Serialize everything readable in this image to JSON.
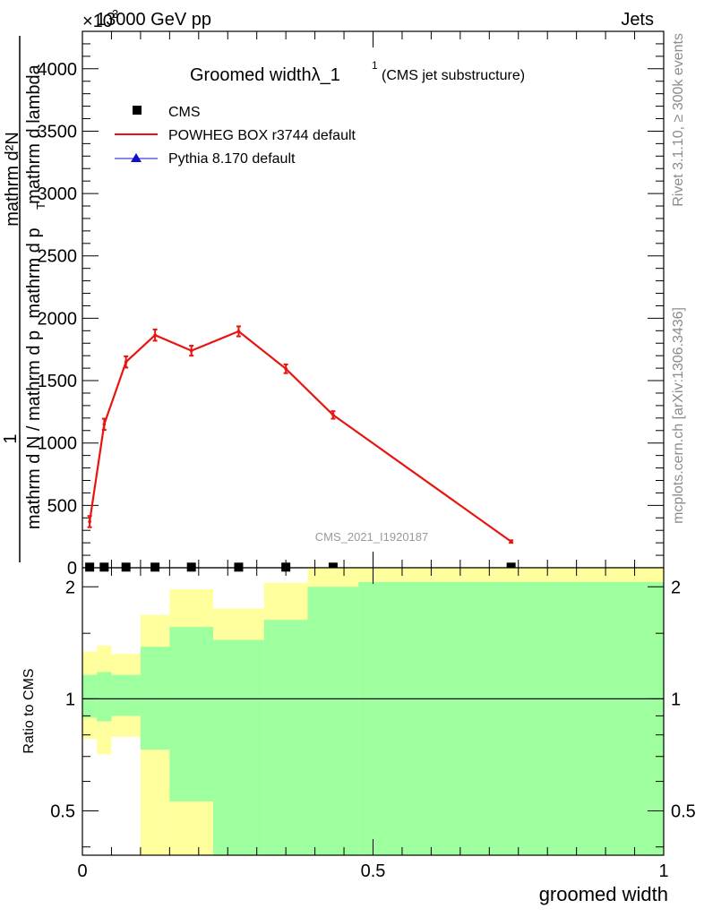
{
  "header": {
    "energy_label": "13000 GeV pp",
    "process_label": "Jets",
    "scale_exponent": "×10",
    "scale_exponent_power": "3"
  },
  "side_labels": {
    "rivet": "Rivet 3.1.10, ≥ 300k events",
    "mcplots": "mcplots.cern.ch [arXiv:1306.3436]"
  },
  "watermark": "CMS_2021_I1920187",
  "chart_data": [
    {
      "type": "line",
      "panel": "main",
      "title": "Groomed widthλ_1",
      "title_superscript": "1",
      "subtitle": "(CMS jet substructure)",
      "ylabel_numerator": "mathrm d²N",
      "ylabel_prefix": "1",
      "ylabel_denominator_1": "mathrm d N / mathrm d p",
      "ylabel_denominator_2": "mathrm d p",
      "ylabel_denominator_3": "mathrm d lambda",
      "ylabel_sub": "T",
      "xlim": [
        0,
        1
      ],
      "ylim": [
        0,
        4300
      ],
      "y_ticks": [
        0,
        500,
        1000,
        1500,
        2000,
        2500,
        3000,
        3500,
        4000
      ],
      "y_tick_labels": [
        "0",
        "500",
        "1000",
        "1500",
        "2000",
        "2500",
        "3000",
        "3500",
        "4000"
      ],
      "legend_position": "top-left",
      "series": [
        {
          "name": "CMS",
          "color": "#000000",
          "marker": "square",
          "x": [
            0.0125,
            0.0375,
            0.075,
            0.125,
            0.1875,
            0.2688,
            0.35,
            0.4313,
            0.7375
          ],
          "y": [
            5,
            5,
            5,
            5,
            5,
            5,
            5,
            5,
            5
          ]
        },
        {
          "name": "POWHEG BOX r3744 default",
          "color": "#e8140f",
          "marker": "none",
          "x": [
            0.0125,
            0.0375,
            0.075,
            0.125,
            0.1875,
            0.2688,
            0.35,
            0.4313,
            0.7375
          ],
          "y": [
            370,
            1150,
            1650,
            1865,
            1740,
            1895,
            1595,
            1225,
            210
          ],
          "yerr": [
            45,
            45,
            45,
            45,
            40,
            40,
            35,
            30,
            10
          ]
        },
        {
          "name": "Pythia 8.170 default",
          "color": "#1010c8",
          "marker": "triangle",
          "x": [],
          "y": []
        }
      ]
    },
    {
      "type": "area",
      "panel": "ratio",
      "ylabel": "Ratio to CMS",
      "xlabel": "groomed width",
      "xlim": [
        0,
        1
      ],
      "ylim": [
        0.38,
        2.25
      ],
      "y_scale": "log",
      "y_ticks": [
        0.5,
        1,
        2
      ],
      "y_tick_labels": [
        "0.5",
        "1",
        "2"
      ],
      "x_ticks": [
        0,
        0.5,
        1
      ],
      "x_tick_labels": [
        "0",
        "0.5",
        "1"
      ],
      "reference_line": 1,
      "band_colors": {
        "inner": "#9eff9e",
        "outer": "#ffff9e"
      },
      "bins": [
        {
          "lo": 0.0,
          "hi": 0.025,
          "inner": [
            0.89,
            1.16
          ],
          "outer": [
            0.78,
            1.34
          ]
        },
        {
          "lo": 0.025,
          "hi": 0.05,
          "inner": [
            0.87,
            1.18
          ],
          "outer": [
            0.71,
            1.39
          ]
        },
        {
          "lo": 0.05,
          "hi": 0.1,
          "inner": [
            0.9,
            1.16
          ],
          "outer": [
            0.79,
            1.32
          ]
        },
        {
          "lo": 0.1,
          "hi": 0.15,
          "inner": [
            0.73,
            1.38
          ],
          "outer": [
            0.38,
            1.68
          ]
        },
        {
          "lo": 0.15,
          "hi": 0.225,
          "inner": [
            0.53,
            1.56
          ],
          "outer": [
            0.38,
            1.97
          ]
        },
        {
          "lo": 0.225,
          "hi": 0.3125,
          "inner": [
            0.38,
            1.44
          ],
          "outer": [
            0.69,
            1.75
          ]
        },
        {
          "lo": 0.3125,
          "hi": 0.3875,
          "inner": [
            0.38,
            1.63
          ],
          "outer": [
            0.41,
            2.05
          ]
        },
        {
          "lo": 0.3875,
          "hi": 0.475,
          "inner": [
            0.38,
            2.0
          ],
          "outer": [
            0.38,
            2.25
          ]
        },
        {
          "lo": 0.475,
          "hi": 1.0,
          "inner": [
            0.38,
            2.06
          ],
          "outer": [
            0.38,
            2.25
          ]
        }
      ]
    }
  ]
}
